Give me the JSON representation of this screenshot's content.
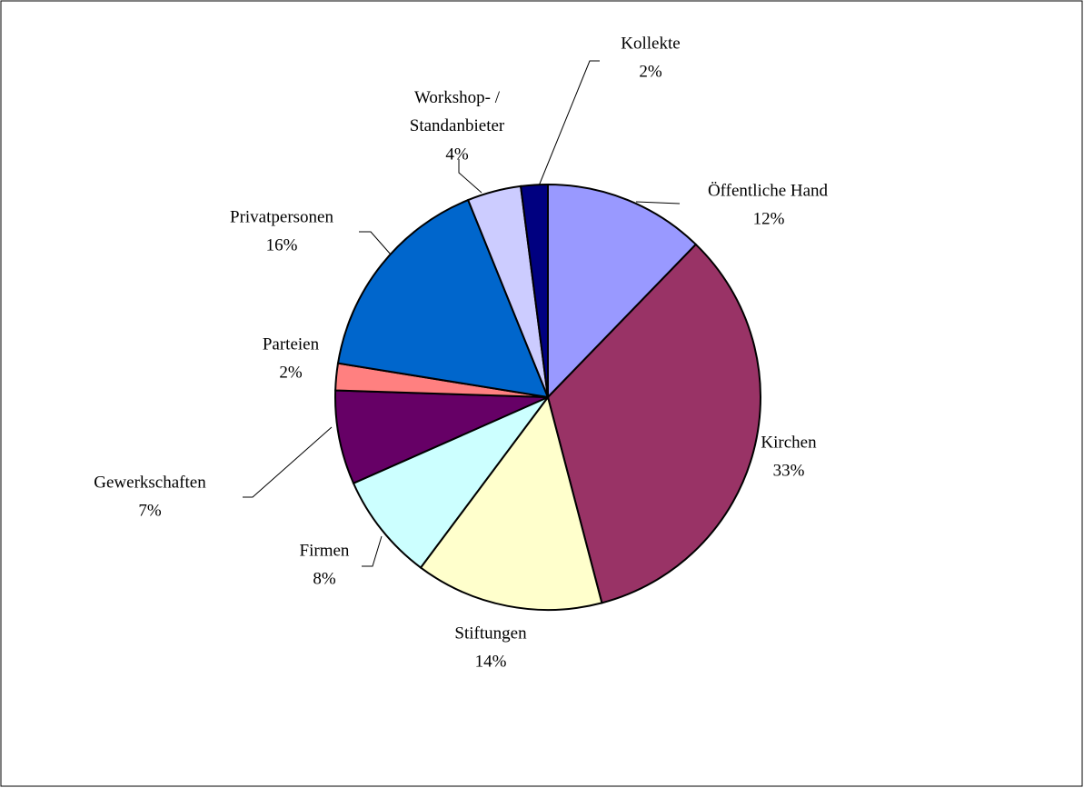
{
  "chart_data": {
    "type": "pie",
    "categories": [
      "Öffentliche Hand",
      "Kirchen",
      "Stiftungen",
      "Firmen",
      "Gewerkschaften",
      "Parteien",
      "Privatpersonen",
      "Workshop- / Standanbieter",
      "Kollekte"
    ],
    "values": [
      12,
      33,
      14,
      8,
      7,
      2,
      16,
      4,
      2
    ],
    "value_labels": [
      "12%",
      "33%",
      "14%",
      "8%",
      "7%",
      "2%",
      "16%",
      "4%",
      "2%"
    ],
    "colors": [
      "#9999ff",
      "#993366",
      "#ffffcc",
      "#ccffff",
      "#660066",
      "#ff8080",
      "#0066cc",
      "#ccccff",
      "#000080"
    ]
  }
}
